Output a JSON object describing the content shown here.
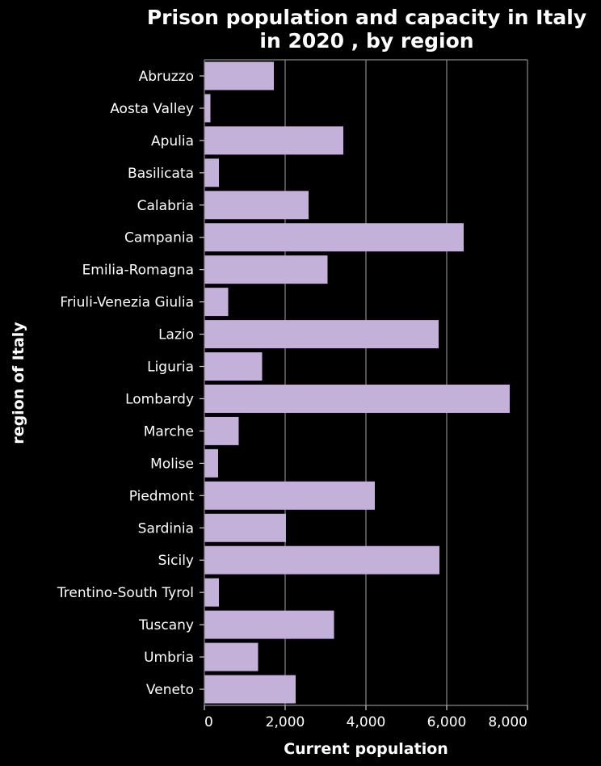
{
  "chart_data": {
    "type": "bar",
    "orientation": "horizontal",
    "title": [
      "Prison population and capacity in Italy",
      "in 2020 , by region"
    ],
    "xlabel": "Current population",
    "ylabel": "region of Italy",
    "xlim": [
      0,
      8000
    ],
    "xticks": [
      0,
      2000,
      4000,
      6000,
      8000
    ],
    "xtick_labels": [
      "0",
      "2,000",
      "4,000",
      "6,000",
      "8,000"
    ],
    "grid": "vertical",
    "bar_color": "#c4b1d9",
    "background_color": "#000000",
    "categories": [
      "Abruzzo",
      "Aosta Valley",
      "Apulia",
      "Basilicata",
      "Calabria",
      "Campania",
      "Emilia-Romagna",
      "Friuli-Venezia Giulia",
      "Lazio",
      "Liguria",
      "Lombardy",
      "Marche",
      "Molise",
      "Piedmont",
      "Sardinia",
      "Sicily",
      "Trentino-South Tyrol",
      "Tuscany",
      "Umbria",
      "Veneto"
    ],
    "values": [
      1720,
      150,
      3440,
      360,
      2580,
      6420,
      3050,
      590,
      5800,
      1430,
      7560,
      850,
      340,
      4220,
      2020,
      5820,
      360,
      3210,
      1330,
      2260
    ]
  }
}
